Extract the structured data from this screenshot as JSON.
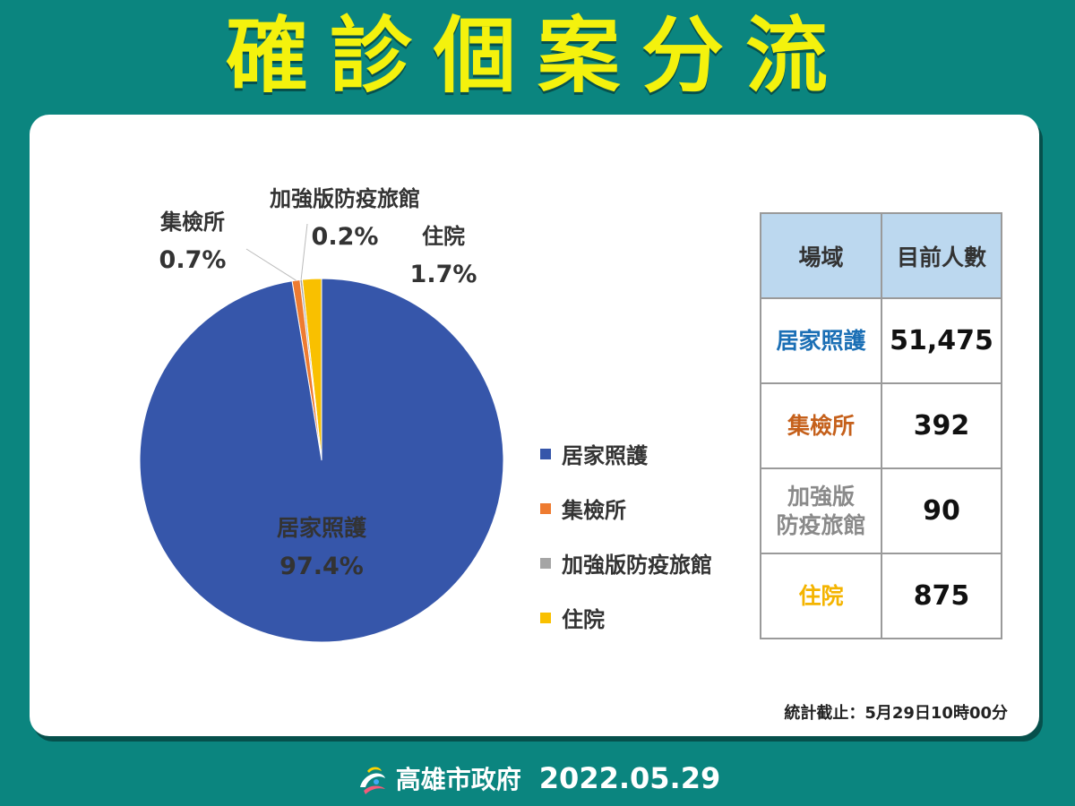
{
  "header": {
    "title": "確診個案分流"
  },
  "chart_data": {
    "type": "pie",
    "title": "",
    "categories": [
      "居家照護",
      "集檢所",
      "加強版防疫旅館",
      "住院"
    ],
    "values": [
      97.4,
      0.7,
      0.2,
      1.7
    ],
    "value_labels": [
      "97.4%",
      "0.7%",
      "0.2%",
      "1.7%"
    ],
    "colors": [
      "#3656aa",
      "#ee7b30",
      "#a5a5a5",
      "#f9c000"
    ],
    "legend_placement": "right"
  },
  "table": {
    "headers": [
      "場域",
      "目前人數"
    ],
    "rows": [
      {
        "name_lines": [
          "居家照護"
        ],
        "value": "51,475",
        "color": "#1b6fb5"
      },
      {
        "name_lines": [
          "集檢所"
        ],
        "value": "392",
        "color": "#c5601b"
      },
      {
        "name_lines": [
          "加強版",
          "防疫旅館"
        ],
        "value": "90",
        "color": "#8a8a8a"
      },
      {
        "name_lines": [
          "住院"
        ],
        "value": "875",
        "color": "#f4b400"
      }
    ]
  },
  "note": "統計截止：5月29日10時00分",
  "footer": {
    "org": "高雄市政府",
    "date": "2022.05.29"
  }
}
